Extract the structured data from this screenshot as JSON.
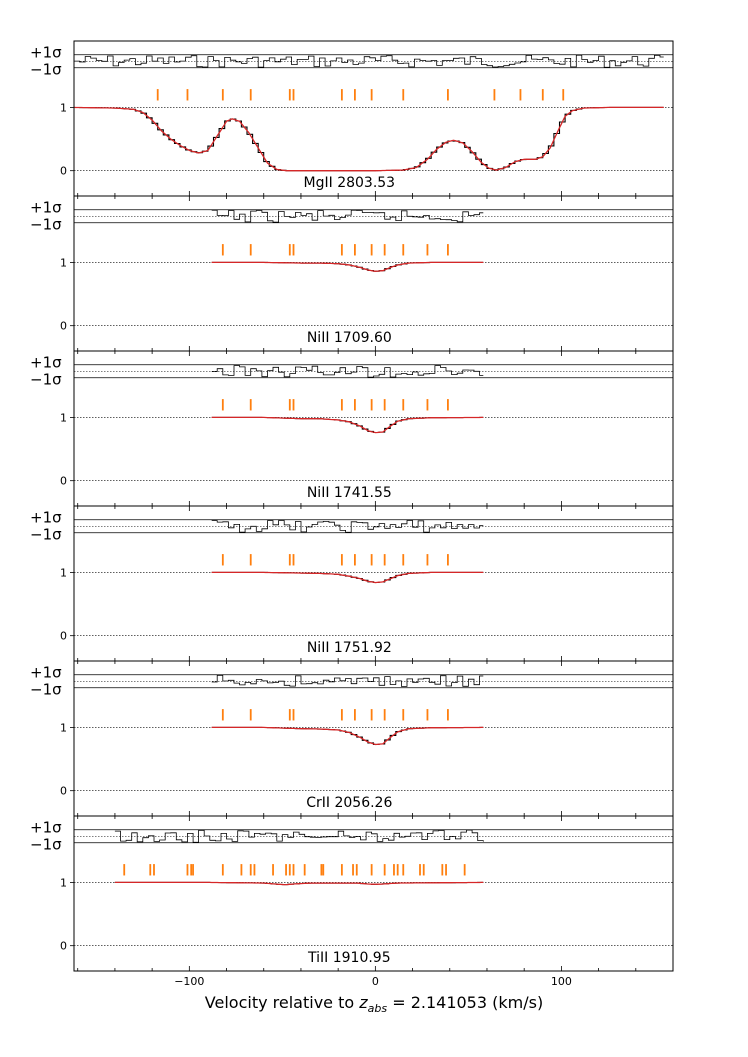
{
  "figure": {
    "xlabel_prefix": "Velocity relative to ",
    "xlabel_z": "z",
    "xlabel_sub": "abs",
    "xlabel_suffix": " = 2.141053 (km/s)"
  },
  "chart_data": {
    "type": "line",
    "xlim": [
      -162,
      160
    ],
    "ylim": [
      -0.4,
      2.05
    ],
    "xticks": [
      -100,
      0,
      100
    ],
    "xtick_labels": [
      "−100",
      "0",
      "100"
    ],
    "yticks": [
      0,
      1
    ],
    "ytick_labels": [
      "0",
      "1"
    ],
    "residual_labels": {
      "plus": "+1σ",
      "minus": "−1σ"
    },
    "colors": {
      "data": "#000000",
      "model": "#d62728",
      "ticks": "#ff7f0e"
    },
    "panels": [
      {
        "label": "MgII 2803.53",
        "x_range": [
          -162,
          155
        ],
        "components": [
          -117,
          -101,
          -82,
          -67,
          -46,
          -44,
          -18,
          -11,
          -2,
          15,
          39,
          64,
          78,
          90,
          101
        ],
        "profile": [
          [
            -162,
            1.0
          ],
          [
            -140,
            0.99
          ],
          [
            -130,
            0.97
          ],
          [
            -125,
            0.92
          ],
          [
            -120,
            0.8
          ],
          [
            -115,
            0.63
          ],
          [
            -110,
            0.5
          ],
          [
            -105,
            0.4
          ],
          [
            -100,
            0.32
          ],
          [
            -95,
            0.28
          ],
          [
            -90,
            0.32
          ],
          [
            -85,
            0.55
          ],
          [
            -80,
            0.78
          ],
          [
            -77,
            0.82
          ],
          [
            -73,
            0.78
          ],
          [
            -68,
            0.6
          ],
          [
            -63,
            0.36
          ],
          [
            -58,
            0.12
          ],
          [
            -53,
            0.02
          ],
          [
            -48,
            0.0
          ],
          [
            -20,
            0.0
          ],
          [
            0,
            0.0
          ],
          [
            15,
            0.01
          ],
          [
            22,
            0.05
          ],
          [
            28,
            0.18
          ],
          [
            33,
            0.34
          ],
          [
            38,
            0.45
          ],
          [
            42,
            0.48
          ],
          [
            47,
            0.44
          ],
          [
            52,
            0.3
          ],
          [
            57,
            0.13
          ],
          [
            61,
            0.04
          ],
          [
            65,
            0.01
          ],
          [
            70,
            0.05
          ],
          [
            75,
            0.14
          ],
          [
            80,
            0.18
          ],
          [
            86,
            0.18
          ],
          [
            90,
            0.22
          ],
          [
            94,
            0.36
          ],
          [
            98,
            0.62
          ],
          [
            102,
            0.86
          ],
          [
            106,
            0.95
          ],
          [
            112,
            0.99
          ],
          [
            125,
            1.0
          ],
          [
            155,
            1.0
          ]
        ]
      },
      {
        "label": "NiII 1709.60",
        "x_range": [
          -88,
          58
        ],
        "components": [
          -82,
          -67,
          -46,
          -44,
          -18,
          -11,
          -2,
          5,
          15,
          28,
          39
        ],
        "profile": [
          [
            -88,
            1.0
          ],
          [
            -60,
            1.0
          ],
          [
            -50,
            0.995
          ],
          [
            -40,
            0.99
          ],
          [
            -30,
            0.99
          ],
          [
            -20,
            0.98
          ],
          [
            -14,
            0.96
          ],
          [
            -8,
            0.92
          ],
          [
            -4,
            0.88
          ],
          [
            0,
            0.86
          ],
          [
            4,
            0.87
          ],
          [
            8,
            0.92
          ],
          [
            12,
            0.96
          ],
          [
            18,
            0.99
          ],
          [
            30,
            1.0
          ],
          [
            58,
            1.0
          ]
        ]
      },
      {
        "label": "NiII 1741.55",
        "x_range": [
          -88,
          58
        ],
        "components": [
          -82,
          -67,
          -46,
          -44,
          -18,
          -11,
          -2,
          5,
          15,
          28,
          39
        ],
        "profile": [
          [
            -88,
            1.0
          ],
          [
            -60,
            1.0
          ],
          [
            -50,
            0.99
          ],
          [
            -40,
            0.98
          ],
          [
            -30,
            0.98
          ],
          [
            -20,
            0.96
          ],
          [
            -14,
            0.93
          ],
          [
            -8,
            0.86
          ],
          [
            -4,
            0.79
          ],
          [
            0,
            0.76
          ],
          [
            4,
            0.77
          ],
          [
            8,
            0.86
          ],
          [
            12,
            0.94
          ],
          [
            18,
            0.98
          ],
          [
            30,
            0.995
          ],
          [
            58,
            1.0
          ]
        ]
      },
      {
        "label": "NiII 1751.92",
        "x_range": [
          -88,
          58
        ],
        "components": [
          -82,
          -67,
          -46,
          -44,
          -18,
          -11,
          -2,
          5,
          15,
          28,
          39
        ],
        "profile": [
          [
            -88,
            1.0
          ],
          [
            -60,
            1.0
          ],
          [
            -50,
            0.995
          ],
          [
            -40,
            0.99
          ],
          [
            -30,
            0.985
          ],
          [
            -20,
            0.97
          ],
          [
            -14,
            0.94
          ],
          [
            -8,
            0.9
          ],
          [
            -4,
            0.86
          ],
          [
            0,
            0.84
          ],
          [
            4,
            0.85
          ],
          [
            8,
            0.9
          ],
          [
            12,
            0.95
          ],
          [
            18,
            0.985
          ],
          [
            30,
            1.0
          ],
          [
            58,
            1.0
          ]
        ]
      },
      {
        "label": "CrII 2056.26",
        "x_range": [
          -88,
          58
        ],
        "components": [
          -82,
          -67,
          -46,
          -44,
          -18,
          -11,
          -2,
          5,
          15,
          28,
          39
        ],
        "profile": [
          [
            -88,
            1.0
          ],
          [
            -60,
            1.0
          ],
          [
            -50,
            0.99
          ],
          [
            -40,
            0.98
          ],
          [
            -30,
            0.975
          ],
          [
            -20,
            0.96
          ],
          [
            -14,
            0.92
          ],
          [
            -8,
            0.84
          ],
          [
            -4,
            0.77
          ],
          [
            0,
            0.73
          ],
          [
            4,
            0.74
          ],
          [
            8,
            0.84
          ],
          [
            12,
            0.93
          ],
          [
            18,
            0.98
          ],
          [
            30,
            0.995
          ],
          [
            58,
            1.0
          ]
        ]
      },
      {
        "label": "TiII 1910.95",
        "x_range": [
          -140,
          58
        ],
        "components": [
          -135,
          -121,
          -119,
          -101,
          -99,
          -98,
          -82,
          -72,
          -67,
          -65,
          -55,
          -48,
          -46,
          -44,
          -38,
          -29,
          -28,
          -18,
          -12,
          -10,
          -2,
          5,
          10,
          12,
          15,
          24,
          26,
          36,
          38,
          48
        ],
        "profile": [
          [
            -140,
            1.0
          ],
          [
            -90,
            1.0
          ],
          [
            -75,
            0.995
          ],
          [
            -60,
            0.99
          ],
          [
            -52,
            0.97
          ],
          [
            -48,
            0.965
          ],
          [
            -44,
            0.975
          ],
          [
            -35,
            0.99
          ],
          [
            -10,
            0.99
          ],
          [
            -4,
            0.975
          ],
          [
            0,
            0.97
          ],
          [
            4,
            0.975
          ],
          [
            12,
            0.99
          ],
          [
            58,
            1.0
          ]
        ]
      }
    ]
  }
}
